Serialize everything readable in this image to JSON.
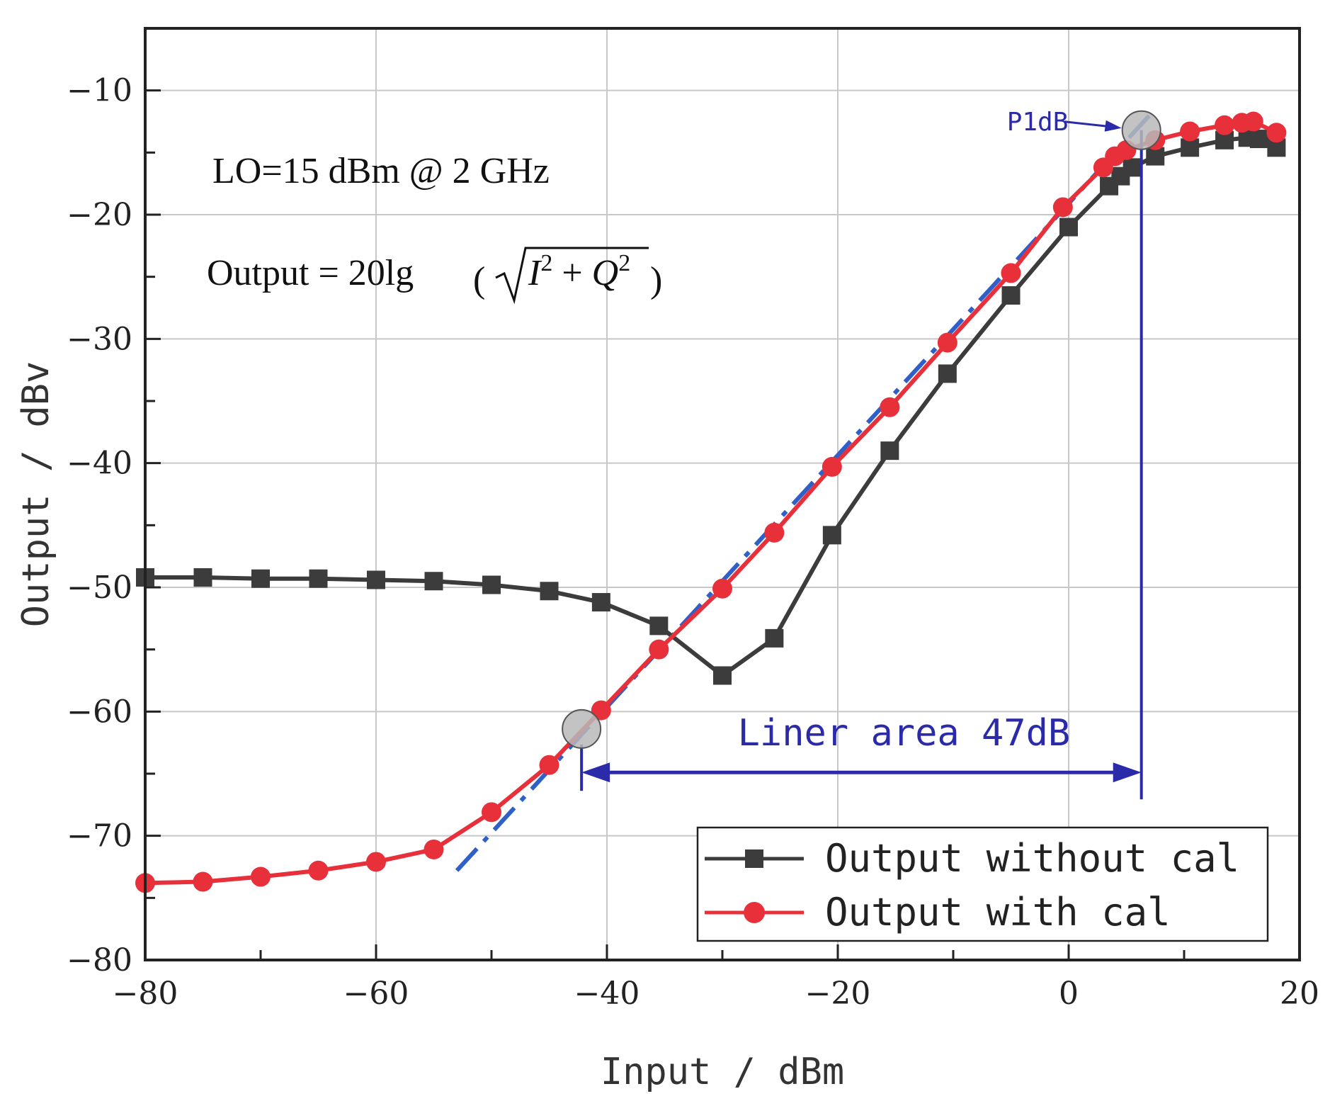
{
  "chart_data": {
    "type": "line",
    "xlabel": "Input / dBm",
    "ylabel": "Output / dBv",
    "xlim": [
      -80,
      20
    ],
    "ylim": [
      -80,
      -5
    ],
    "xticks": [
      -80,
      -60,
      -40,
      -20,
      0,
      20
    ],
    "yticks": [
      -80,
      -70,
      -60,
      -50,
      -40,
      -30,
      -20,
      -10
    ],
    "xtick_labels": [
      "−80",
      "−60",
      "−40",
      "−20",
      "0",
      "20"
    ],
    "ytick_labels": [
      "−80",
      "−70",
      "−60",
      "−50",
      "−40",
      "−30",
      "−20",
      "−10"
    ],
    "grid": true,
    "legend_position": "bottom-right",
    "series": [
      {
        "name": "Output without cal",
        "color": "#3c3c3c",
        "marker": "square",
        "x": [
          -80,
          -75,
          -70,
          -65,
          -60,
          -55,
          -50,
          -45,
          -40.5,
          -35.5,
          -30,
          -25.5,
          -20.5,
          -15.5,
          -10.5,
          -5,
          0,
          3.5,
          4.5,
          5.5,
          7.5,
          10.5,
          13.5,
          15.5,
          16.5,
          18
        ],
        "y": [
          -49.2,
          -49.2,
          -49.3,
          -49.3,
          -49.4,
          -49.5,
          -49.8,
          -50.3,
          -51.2,
          -53.1,
          -57.1,
          -54.1,
          -45.8,
          -39.0,
          -32.8,
          -26.5,
          -21.0,
          -17.7,
          -16.9,
          -16.2,
          -15.3,
          -14.6,
          -14.0,
          -13.8,
          -13.9,
          -14.6
        ]
      },
      {
        "name": "Output with cal",
        "color": "#e8303a",
        "marker": "circle",
        "x": [
          -80,
          -75,
          -70,
          -65,
          -60,
          -55,
          -50,
          -45,
          -40.5,
          -35.5,
          -30,
          -25.5,
          -20.5,
          -15.5,
          -10.5,
          -5,
          -0.5,
          3,
          4,
          5,
          7.5,
          10.5,
          13.5,
          15,
          16,
          18
        ],
        "y": [
          -73.8,
          -73.7,
          -73.3,
          -72.8,
          -72.1,
          -71.1,
          -68.1,
          -64.3,
          -59.9,
          -55.0,
          -50.1,
          -45.6,
          -40.3,
          -35.5,
          -30.3,
          -24.7,
          -19.4,
          -16.2,
          -15.3,
          -14.8,
          -14.0,
          -13.3,
          -12.8,
          -12.6,
          -12.5,
          -13.4
        ]
      }
    ],
    "fit_line": {
      "name": "linear fit",
      "color": "#2f5fc8",
      "x": [
        -53,
        7.5
      ],
      "y": [
        -72.8,
        -11.5
      ]
    },
    "annotations": {
      "lo_text": "LO=15 dBm @ 2 GHz",
      "output_eq_prefix": "Output = 20lg",
      "p1db_label": "P1dB",
      "p1db_point": {
        "x": 6.3,
        "y": -13.2
      },
      "start_point": {
        "x": -42.2,
        "y": -61.4
      },
      "linear_area_label": "Liner area 47dB",
      "linear_area_y": -64.9
    }
  }
}
